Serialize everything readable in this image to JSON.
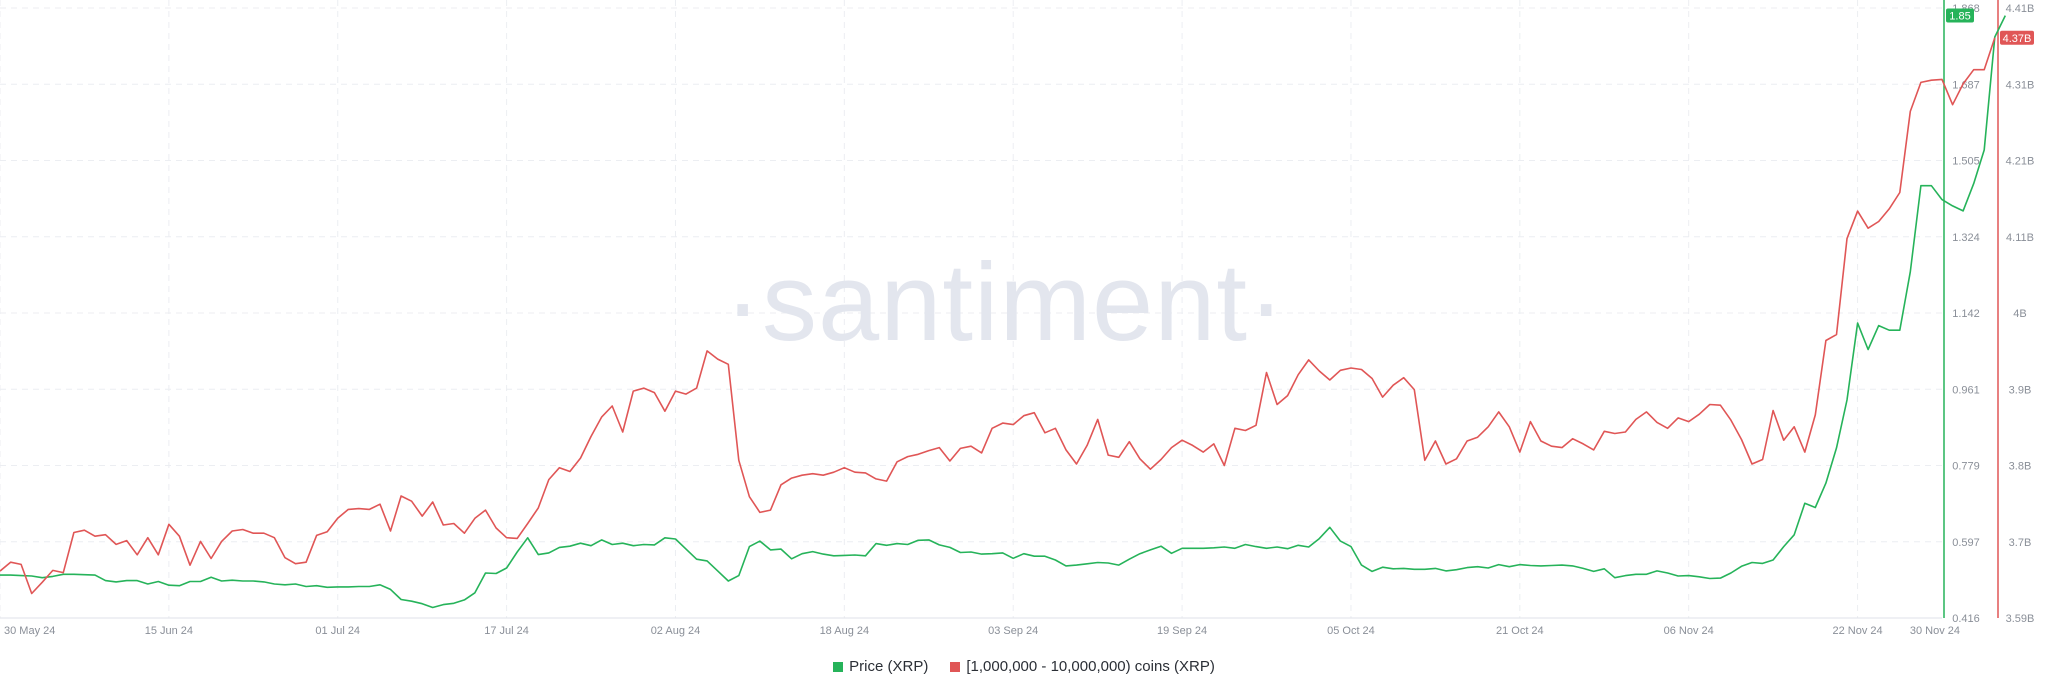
{
  "watermark": "·santiment·",
  "chart_data": {
    "type": "line",
    "x_ticks": [
      "30 May 24",
      "15 Jun 24",
      "01 Jul 24",
      "17 Jul 24",
      "02 Aug 24",
      "18 Aug 24",
      "03 Sep 24",
      "19 Sep 24",
      "05 Oct 24",
      "21 Oct 24",
      "06 Nov 24",
      "22 Nov 24",
      "30 Nov 24"
    ],
    "x_range": [
      "2024-05-30",
      "2024-11-30"
    ],
    "y_left": {
      "label": "",
      "ticks": [
        "0.416",
        "0.597",
        "0.779",
        "0.961",
        "1.142",
        "1.324",
        "1.505",
        "1.687",
        "1.868"
      ],
      "range": [
        0.416,
        1.868
      ],
      "color": "#26b35a"
    },
    "y_right": {
      "label": "",
      "ticks": [
        "3.59B",
        "3.7B",
        "3.8B",
        "3.9B",
        "4B",
        "4.11B",
        "4.21B",
        "4.31B",
        "4.41B"
      ],
      "range": [
        3.59,
        4.41
      ],
      "color": "#e05656"
    },
    "current_labels": {
      "price": "1.85",
      "holders": "4.37B"
    },
    "grid": true,
    "legend_position": "bottom-center",
    "series": [
      {
        "name": "Price (XRP)",
        "axis": "left",
        "color": "#26b35a",
        "values": [
          0.518,
          0.518,
          0.517,
          0.516,
          0.512,
          0.515,
          0.52,
          0.52,
          0.519,
          0.518,
          0.505,
          0.502,
          0.505,
          0.505,
          0.497,
          0.503,
          0.494,
          0.493,
          0.503,
          0.503,
          0.513,
          0.504,
          0.506,
          0.504,
          0.504,
          0.502,
          0.497,
          0.495,
          0.497,
          0.491,
          0.493,
          0.489,
          0.49,
          0.49,
          0.491,
          0.491,
          0.495,
          0.484,
          0.46,
          0.456,
          0.45,
          0.441,
          0.448,
          0.451,
          0.459,
          0.476,
          0.523,
          0.522,
          0.535,
          0.573,
          0.607,
          0.567,
          0.571,
          0.584,
          0.587,
          0.594,
          0.588,
          0.602,
          0.591,
          0.594,
          0.588,
          0.591,
          0.59,
          0.607,
          0.604,
          0.58,
          0.556,
          0.552,
          0.528,
          0.504,
          0.517,
          0.586,
          0.599,
          0.578,
          0.58,
          0.557,
          0.569,
          0.574,
          0.568,
          0.564,
          0.565,
          0.566,
          0.564,
          0.593,
          0.589,
          0.593,
          0.591,
          0.601,
          0.602,
          0.59,
          0.584,
          0.572,
          0.573,
          0.568,
          0.569,
          0.571,
          0.558,
          0.569,
          0.563,
          0.563,
          0.554,
          0.54,
          0.542,
          0.545,
          0.548,
          0.547,
          0.542,
          0.556,
          0.569,
          0.578,
          0.587,
          0.57,
          0.582,
          0.582,
          0.582,
          0.583,
          0.585,
          0.582,
          0.591,
          0.586,
          0.582,
          0.585,
          0.581,
          0.589,
          0.585,
          0.605,
          0.632,
          0.599,
          0.586,
          0.542,
          0.527,
          0.537,
          0.533,
          0.534,
          0.532,
          0.532,
          0.534,
          0.528,
          0.531,
          0.536,
          0.538,
          0.535,
          0.543,
          0.538,
          0.543,
          0.541,
          0.54,
          0.541,
          0.542,
          0.54,
          0.534,
          0.527,
          0.533,
          0.512,
          0.517,
          0.52,
          0.52,
          0.528,
          0.523,
          0.516,
          0.517,
          0.514,
          0.51,
          0.511,
          0.523,
          0.539,
          0.548,
          0.546,
          0.554,
          0.586,
          0.614,
          0.689,
          0.679,
          0.737,
          0.821,
          0.935,
          1.118,
          1.055,
          1.112,
          1.101,
          1.101,
          1.24,
          1.445,
          1.445,
          1.412,
          1.397,
          1.385,
          1.45,
          1.53,
          1.799,
          1.85
        ]
      },
      {
        "name": "[1,000,000 - 10,000,000) coins (XRP)",
        "axis": "right",
        "color": "#e05656",
        "values": [
          3.653,
          3.665,
          3.662,
          3.623,
          3.638,
          3.654,
          3.651,
          3.705,
          3.708,
          3.7,
          3.702,
          3.689,
          3.694,
          3.675,
          3.698,
          3.675,
          3.716,
          3.7,
          3.661,
          3.693,
          3.67,
          3.693,
          3.707,
          3.709,
          3.704,
          3.704,
          3.698,
          3.671,
          3.663,
          3.665,
          3.701,
          3.706,
          3.724,
          3.736,
          3.737,
          3.736,
          3.743,
          3.707,
          3.754,
          3.747,
          3.727,
          3.746,
          3.715,
          3.717,
          3.704,
          3.724,
          3.735,
          3.711,
          3.698,
          3.697,
          3.717,
          3.738,
          3.776,
          3.792,
          3.787,
          3.805,
          3.834,
          3.86,
          3.875,
          3.84,
          3.895,
          3.899,
          3.893,
          3.868,
          3.895,
          3.891,
          3.899,
          3.949,
          3.938,
          3.931,
          3.802,
          3.753,
          3.732,
          3.735,
          3.769,
          3.778,
          3.782,
          3.784,
          3.782,
          3.786,
          3.792,
          3.786,
          3.785,
          3.777,
          3.774,
          3.8,
          3.807,
          3.81,
          3.815,
          3.819,
          3.801,
          3.818,
          3.821,
          3.812,
          3.845,
          3.852,
          3.85,
          3.862,
          3.866,
          3.839,
          3.845,
          3.816,
          3.797,
          3.822,
          3.857,
          3.809,
          3.806,
          3.827,
          3.804,
          3.79,
          3.803,
          3.819,
          3.829,
          3.822,
          3.813,
          3.824,
          3.795,
          3.845,
          3.842,
          3.849,
          3.92,
          3.877,
          3.889,
          3.917,
          3.937,
          3.922,
          3.91,
          3.923,
          3.926,
          3.924,
          3.912,
          3.887,
          3.903,
          3.913,
          3.897,
          3.802,
          3.828,
          3.797,
          3.804,
          3.828,
          3.833,
          3.847,
          3.867,
          3.847,
          3.813,
          3.854,
          3.828,
          3.821,
          3.819,
          3.831,
          3.824,
          3.816,
          3.841,
          3.838,
          3.84,
          3.857,
          3.867,
          3.853,
          3.845,
          3.859,
          3.854,
          3.864,
          3.877,
          3.876,
          3.856,
          3.83,
          3.797,
          3.803,
          3.869,
          3.829,
          3.847,
          3.813,
          3.863,
          3.963,
          3.971,
          4.1,
          4.137,
          4.114,
          4.123,
          4.14,
          4.162,
          4.271,
          4.31,
          4.313,
          4.314,
          4.28,
          4.308,
          4.327,
          4.327,
          4.37
        ]
      }
    ]
  }
}
